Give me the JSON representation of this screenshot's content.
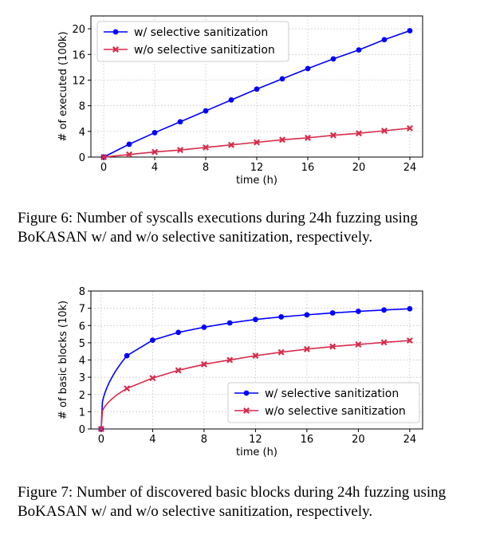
{
  "chart_data": [
    {
      "type": "line",
      "xlabel": "time (h)",
      "ylabel": "# of executed (100k)",
      "xlim": [
        -1,
        25
      ],
      "ylim": [
        0,
        22
      ],
      "xticks": [
        0,
        4,
        8,
        12,
        16,
        20,
        24
      ],
      "yticks": [
        0,
        4,
        8,
        12,
        16,
        20
      ],
      "grid": true,
      "legend_position": "top-left",
      "x": [
        0,
        2,
        4,
        6,
        8,
        10,
        12,
        14,
        16,
        18,
        20,
        22,
        24
      ],
      "series": [
        {
          "name": "w/ selective sanitization",
          "color": "#0000ff",
          "marker": "circle",
          "values": [
            0,
            2.0,
            3.8,
            5.5,
            7.2,
            8.9,
            10.6,
            12.2,
            13.8,
            15.3,
            16.7,
            18.3,
            19.7
          ]
        },
        {
          "name": "w/o selective sanitization",
          "color": "#d62c4b",
          "marker": "x",
          "values": [
            0,
            0.4,
            0.8,
            1.1,
            1.5,
            1.9,
            2.3,
            2.7,
            3.0,
            3.4,
            3.7,
            4.1,
            4.5
          ]
        }
      ]
    },
    {
      "type": "line",
      "xlabel": "time (h)",
      "ylabel": "# of basic blocks (10k)",
      "xlim": [
        -0.8,
        25
      ],
      "ylim": [
        0,
        8
      ],
      "xticks": [
        0,
        4,
        8,
        12,
        16,
        20,
        24
      ],
      "yticks": [
        0,
        1,
        2,
        3,
        4,
        5,
        6,
        7,
        8
      ],
      "grid": true,
      "legend_position": "bottom-right",
      "x": [
        0,
        2,
        4,
        6,
        8,
        10,
        12,
        14,
        16,
        18,
        20,
        22,
        24
      ],
      "series": [
        {
          "name": "w/ selective sanitization",
          "color": "#0000ff",
          "marker": "circle",
          "values": [
            0,
            4.25,
            5.15,
            5.6,
            5.9,
            6.15,
            6.35,
            6.5,
            6.62,
            6.73,
            6.82,
            6.9,
            6.97
          ]
        },
        {
          "name": "w/o selective sanitization",
          "color": "#d62c4b",
          "marker": "x",
          "values": [
            0,
            2.35,
            2.95,
            3.4,
            3.75,
            4.0,
            4.25,
            4.45,
            4.63,
            4.78,
            4.9,
            5.02,
            5.13
          ]
        }
      ]
    }
  ],
  "captions": {
    "fig6": "Figure 6: Number of syscalls executions during 24h fuzzing using BoKASAN w/ and w/o selective sanitization, respectively.",
    "fig7": "Figure 7: Number of discovered basic blocks during 24h fuzzing using BoKASAN w/ and w/o selective sanitization, respectively."
  }
}
